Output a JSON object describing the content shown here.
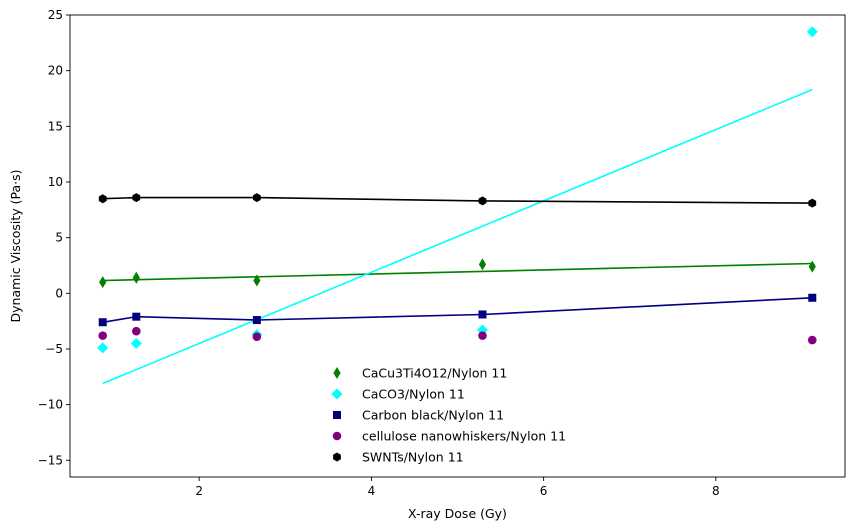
{
  "chart_data": {
    "type": "scatter",
    "title": "",
    "xlabel": "X-ray Dose (Gy)",
    "ylabel": "Dynamic Viscosity (Pa·s)",
    "xlim": [
      0.5,
      9.5
    ],
    "ylim": [
      -16.5,
      25
    ],
    "xticks": [
      2,
      4,
      6,
      8
    ],
    "yticks": [
      -15,
      -10,
      -5,
      0,
      5,
      10,
      15,
      20,
      25
    ],
    "grid": false,
    "legend_position": "bottom-center",
    "series": [
      {
        "name": "CaCu3Ti4O12/Nylon 11",
        "color": "#008000",
        "marker": "thin-diamond",
        "x": [
          0.88,
          1.27,
          2.67,
          5.29,
          9.12
        ],
        "y": [
          1.0,
          1.4,
          1.15,
          2.6,
          2.4
        ],
        "fit": {
          "x": [
            0.88,
            9.12
          ],
          "y": [
            1.15,
            2.68
          ]
        }
      },
      {
        "name": "CaCO3/Nylon 11",
        "color": "#00ffff",
        "marker": "diamond",
        "x": [
          0.88,
          1.27,
          2.67,
          5.29,
          9.12
        ],
        "y": [
          -4.9,
          -4.5,
          -3.7,
          -3.3,
          23.5
        ],
        "fit": {
          "x": [
            0.88,
            9.12
          ],
          "y": [
            -8.1,
            18.3
          ]
        }
      },
      {
        "name": "Carbon black/Nylon 11",
        "color": "#000080",
        "marker": "square",
        "x": [
          0.88,
          1.27,
          2.67,
          5.29,
          9.12
        ],
        "y": [
          -2.6,
          -2.1,
          -2.4,
          -1.9,
          -0.4
        ],
        "fit": {
          "x": [
            0.88,
            1.27,
            2.67,
            5.29,
            9.12
          ],
          "y": [
            -2.6,
            -2.1,
            -2.4,
            -1.9,
            -0.4
          ]
        }
      },
      {
        "name": "cellulose nanowhiskers/Nylon 11",
        "color": "#800080",
        "marker": "circle",
        "x": [
          0.88,
          1.27,
          2.67,
          5.29,
          9.12
        ],
        "y": [
          -3.8,
          -3.4,
          -3.9,
          -3.8,
          -4.2
        ]
      },
      {
        "name": "SWNTs/Nylon 11",
        "color": "#000000",
        "marker": "hexagon",
        "x": [
          0.88,
          1.27,
          2.67,
          5.29,
          9.12
        ],
        "y": [
          8.5,
          8.6,
          8.6,
          8.3,
          8.1
        ],
        "fit": {
          "x": [
            0.88,
            1.27,
            2.67,
            5.29,
            9.12
          ],
          "y": [
            8.5,
            8.6,
            8.6,
            8.3,
            8.1
          ]
        }
      }
    ]
  }
}
